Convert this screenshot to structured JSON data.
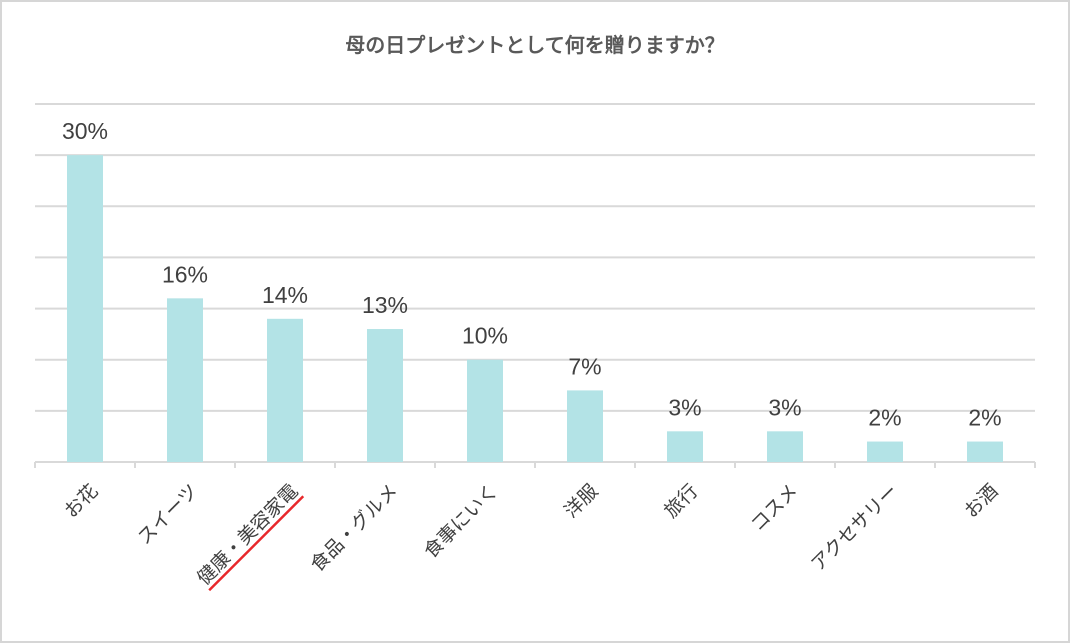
{
  "chart_data": {
    "type": "bar",
    "title": "母の日プレゼントとして何を贈りますか？",
    "categories": [
      "お花",
      "スイーツ",
      "健康・美容家電",
      "食品・グルメ",
      "食事にいく",
      "洋服",
      "旅行",
      "コスメ",
      "アクセサリー",
      "お酒"
    ],
    "values": [
      30,
      16,
      14,
      13,
      10,
      7,
      3,
      3,
      2,
      2
    ],
    "value_labels": [
      "30%",
      "16%",
      "14%",
      "13%",
      "10%",
      "7%",
      "3%",
      "3%",
      "2%",
      "2%"
    ],
    "unit": "%",
    "ylim": [
      0,
      35
    ],
    "grid": true,
    "bar_color": "#b3e3e6",
    "grid_color": "#d9d9d9",
    "highlight": {
      "category_index": 2,
      "color": "#e8282b"
    }
  }
}
